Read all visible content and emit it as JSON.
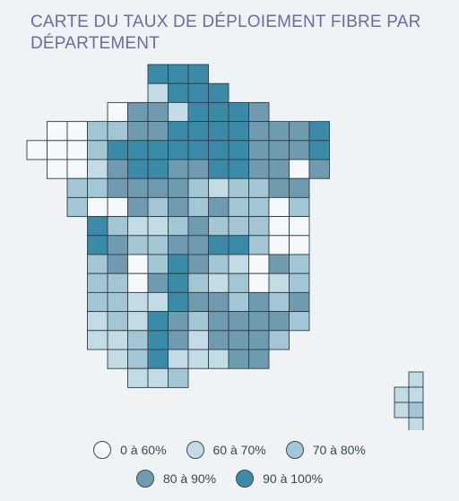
{
  "title": "CARTE DU TAUX DE DÉPLOIEMENT FIBRE PAR DÉPARTEMENT",
  "legend": [
    {
      "label": "0 à 60%",
      "color": "#f6f9fb"
    },
    {
      "label": "60 à 70%",
      "color": "#c3dbe4"
    },
    {
      "label": "70 à 80%",
      "color": "#a3c6d4"
    },
    {
      "label": "80 à 90%",
      "color": "#6f9bb0"
    },
    {
      "label": "90 à 100%",
      "color": "#3a8aa8"
    }
  ],
  "map_tiles": [
    [
      null,
      null,
      null,
      null,
      null,
      null,
      4,
      4,
      4,
      null,
      null,
      null,
      null,
      null,
      null,
      null,
      null
    ],
    [
      null,
      null,
      null,
      null,
      null,
      null,
      1,
      4,
      4,
      4,
      null,
      null,
      null,
      null,
      null,
      null,
      null
    ],
    [
      null,
      null,
      null,
      null,
      0,
      3,
      3,
      1,
      4,
      4,
      4,
      3,
      null,
      null,
      null,
      null,
      null
    ],
    [
      null,
      0,
      0,
      2,
      2,
      3,
      3,
      4,
      4,
      4,
      4,
      3,
      3,
      3,
      4,
      null,
      null
    ],
    [
      0,
      0,
      0,
      2,
      4,
      4,
      4,
      4,
      4,
      4,
      4,
      3,
      3,
      3,
      4,
      null,
      null
    ],
    [
      null,
      0,
      0,
      1,
      3,
      4,
      4,
      3,
      3,
      4,
      4,
      3,
      3,
      0,
      3,
      null,
      null
    ],
    [
      null,
      null,
      2,
      2,
      3,
      3,
      3,
      3,
      2,
      1,
      2,
      2,
      3,
      3,
      null,
      null,
      null
    ],
    [
      null,
      null,
      2,
      0,
      0,
      3,
      2,
      3,
      2,
      3,
      2,
      2,
      0,
      2,
      null,
      null,
      null
    ],
    [
      null,
      null,
      null,
      4,
      2,
      1,
      1,
      2,
      3,
      2,
      2,
      2,
      0,
      0,
      null,
      null,
      null
    ],
    [
      null,
      null,
      null,
      4,
      3,
      2,
      2,
      3,
      3,
      4,
      4,
      2,
      0,
      0,
      null,
      null,
      null
    ],
    [
      null,
      null,
      null,
      2,
      3,
      0,
      2,
      4,
      3,
      2,
      1,
      0,
      3,
      2,
      null,
      null,
      null
    ],
    [
      null,
      null,
      null,
      2,
      2,
      0,
      3,
      4,
      2,
      1,
      2,
      0,
      1,
      2,
      null,
      null,
      null
    ],
    [
      null,
      null,
      null,
      2,
      2,
      1,
      1,
      4,
      3,
      3,
      2,
      3,
      2,
      3,
      null,
      null,
      null
    ],
    [
      null,
      null,
      null,
      1,
      2,
      1,
      4,
      3,
      2,
      3,
      3,
      3,
      3,
      2,
      null,
      null,
      null
    ],
    [
      null,
      null,
      null,
      1,
      1,
      2,
      4,
      3,
      1,
      3,
      3,
      3,
      2,
      null,
      null,
      null,
      null
    ],
    [
      null,
      null,
      null,
      null,
      1,
      2,
      4,
      1,
      1,
      1,
      3,
      3,
      null,
      null,
      null,
      null,
      null
    ],
    [
      null,
      null,
      null,
      null,
      null,
      1,
      1,
      2,
      null,
      null,
      null,
      null,
      null,
      null,
      null,
      null,
      null
    ]
  ],
  "corsica_tiles": [
    [
      null,
      1
    ],
    [
      1,
      1
    ],
    [
      1,
      2
    ],
    [
      null,
      1
    ]
  ]
}
